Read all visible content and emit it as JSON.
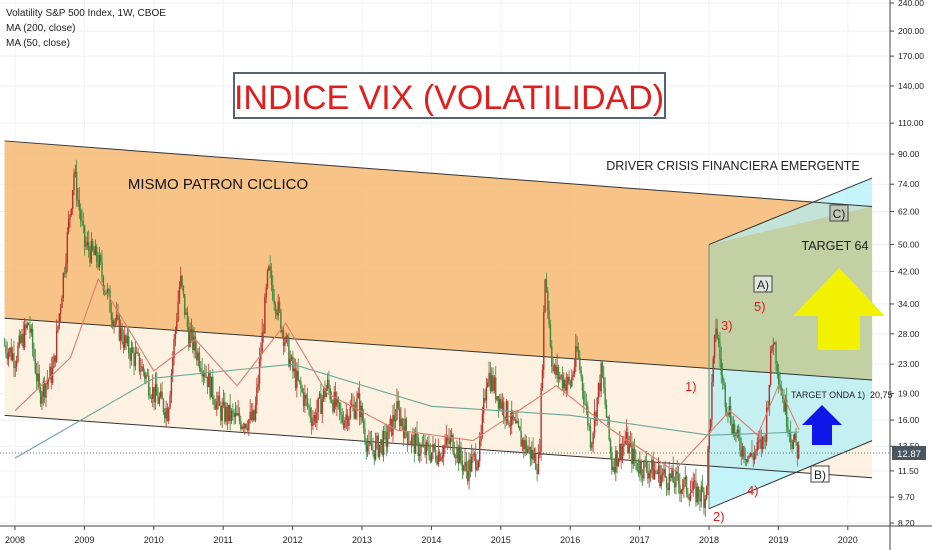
{
  "header": {
    "instrument": "Volatility S&P 500 Index, 1W, CBOE",
    "ma200": "MA (200, close)",
    "ma50": "MA (50, close)"
  },
  "annotations": {
    "title": "INDICE VIX (VOLATILIDAD)",
    "pattern": "MISMO PATRON CICLICO",
    "driver": "DRIVER CRISIS FINANCIERA EMERGENTE",
    "target64": "TARGET 64",
    "target_onda_label": "TARGET ONDA 1)",
    "target_onda_value": "20,75",
    "wave1": "1)",
    "wave2": "2)",
    "wave3": "3)",
    "wave4": "4)",
    "wave5": "5)",
    "waveA": "A)",
    "waveB": "B)",
    "waveC": "C)"
  },
  "colors": {
    "channel_orange": "#f6b971",
    "channel_light": "#fdf0de",
    "projection_cyan": "#aef0f8",
    "projection_olive": "#c3c992",
    "candle_up": "#3c8a3c",
    "candle_down": "#b8322c",
    "ma_short": "#e07c70",
    "ma_long": "#6aa79a",
    "title_red": "#e01e1e",
    "wave_red": "#e02020",
    "arrow_yellow": "#f2f200",
    "arrow_blue": "#1015e8",
    "price_badge": "#4a5660"
  },
  "chart_data": {
    "type": "candlestick",
    "title": "Volatility S&P 500 Index, 1W, CBOE",
    "timeframe": "1W",
    "y_scale": "log",
    "y_ticks": [
      8.2,
      9.7,
      11.5,
      13.5,
      16.0,
      19.0,
      23.0,
      28.0,
      34.0,
      42.0,
      50.0,
      62.0,
      74.0,
      90.0,
      110.0,
      140.0,
      170.0,
      200.0,
      240.0
    ],
    "y_tick_labels": [
      "8.20",
      "9.70",
      "11.50",
      "13.50",
      "16.00",
      "19.00",
      "23.00",
      "28.00",
      "34.00",
      "42.00",
      "50.00",
      "62.00",
      "74.00",
      "90.00",
      "110.00",
      "140.00",
      "170.00",
      "200.00",
      "240.00"
    ],
    "x_ticks": [
      "2008",
      "2009",
      "2010",
      "2011",
      "2012",
      "2013",
      "2014",
      "2015",
      "2016",
      "2017",
      "2018",
      "2019",
      "2020"
    ],
    "last_price": "12.87",
    "series": [
      {
        "name": "MA (200, close)",
        "points": [
          [
            2008.0,
            12.5
          ],
          [
            2010.0,
            21.0
          ],
          [
            2012.0,
            23.0
          ],
          [
            2014.0,
            17.5
          ],
          [
            2016.0,
            16.5
          ],
          [
            2018.0,
            14.5
          ],
          [
            2019.3,
            14.8
          ]
        ]
      },
      {
        "name": "MA (50, close)",
        "points": [
          [
            2008.0,
            17.0
          ],
          [
            2008.8,
            24.0
          ],
          [
            2009.2,
            40.0
          ],
          [
            2010.0,
            22.0
          ],
          [
            2010.6,
            27.0
          ],
          [
            2011.2,
            20.0
          ],
          [
            2011.9,
            30.0
          ],
          [
            2012.5,
            19.0
          ],
          [
            2013.5,
            15.0
          ],
          [
            2014.6,
            14.0
          ],
          [
            2015.8,
            20.0
          ],
          [
            2016.6,
            15.0
          ],
          [
            2017.5,
            11.5
          ],
          [
            2018.3,
            17.0
          ],
          [
            2018.7,
            14.5
          ],
          [
            2019.0,
            20.0
          ],
          [
            2019.3,
            15.0
          ]
        ]
      }
    ],
    "price_path": [
      [
        2007.85,
        26
      ],
      [
        2008.0,
        24
      ],
      [
        2008.2,
        30
      ],
      [
        2008.35,
        19
      ],
      [
        2008.55,
        22
      ],
      [
        2008.72,
        45
      ],
      [
        2008.85,
        80
      ],
      [
        2009.0,
        50
      ],
      [
        2009.2,
        45
      ],
      [
        2009.4,
        32
      ],
      [
        2009.6,
        26
      ],
      [
        2009.85,
        22
      ],
      [
        2010.0,
        19
      ],
      [
        2010.2,
        17
      ],
      [
        2010.38,
        40
      ],
      [
        2010.5,
        28
      ],
      [
        2010.7,
        23
      ],
      [
        2010.95,
        17
      ],
      [
        2011.2,
        16
      ],
      [
        2011.45,
        16
      ],
      [
        2011.65,
        42
      ],
      [
        2011.8,
        32
      ],
      [
        2012.0,
        22
      ],
      [
        2012.3,
        16
      ],
      [
        2012.5,
        20
      ],
      [
        2012.7,
        16
      ],
      [
        2012.95,
        18
      ],
      [
        2013.1,
        13
      ],
      [
        2013.35,
        14
      ],
      [
        2013.5,
        17
      ],
      [
        2013.7,
        14
      ],
      [
        2013.9,
        13
      ],
      [
        2014.1,
        13
      ],
      [
        2014.3,
        14
      ],
      [
        2014.5,
        11.5
      ],
      [
        2014.7,
        13
      ],
      [
        2014.8,
        22
      ],
      [
        2015.0,
        18
      ],
      [
        2015.3,
        14
      ],
      [
        2015.55,
        12
      ],
      [
        2015.64,
        42
      ],
      [
        2015.75,
        22
      ],
      [
        2016.0,
        20
      ],
      [
        2016.1,
        25
      ],
      [
        2016.3,
        14
      ],
      [
        2016.45,
        22
      ],
      [
        2016.6,
        12
      ],
      [
        2016.8,
        14
      ],
      [
        2016.95,
        12
      ],
      [
        2017.2,
        11.5
      ],
      [
        2017.4,
        11
      ],
      [
        2017.6,
        10.5
      ],
      [
        2017.8,
        10
      ],
      [
        2017.95,
        9.8
      ],
      [
        2018.1,
        30
      ],
      [
        2018.2,
        20
      ],
      [
        2018.4,
        14
      ],
      [
        2018.6,
        12.5
      ],
      [
        2018.8,
        14
      ],
      [
        2018.92,
        28
      ],
      [
        2019.05,
        19
      ],
      [
        2019.2,
        14
      ],
      [
        2019.3,
        12.9
      ]
    ],
    "channel_lines": [
      {
        "name": "upper",
        "from": [
          2007.85,
          98
        ],
        "to": [
          2020.35,
          64
        ]
      },
      {
        "name": "middle",
        "from": [
          2007.85,
          31
        ],
        "to": [
          2020.35,
          20.75
        ]
      },
      {
        "name": "lower",
        "from": [
          2007.85,
          16.5
        ],
        "to": [
          2020.35,
          11
        ]
      }
    ],
    "projection_lines": [
      {
        "from": [
          2018.0,
          50
        ],
        "to": [
          2020.35,
          77
        ]
      },
      {
        "from": [
          2018.0,
          9.0
        ],
        "to": [
          2020.35,
          14.0
        ]
      }
    ]
  }
}
